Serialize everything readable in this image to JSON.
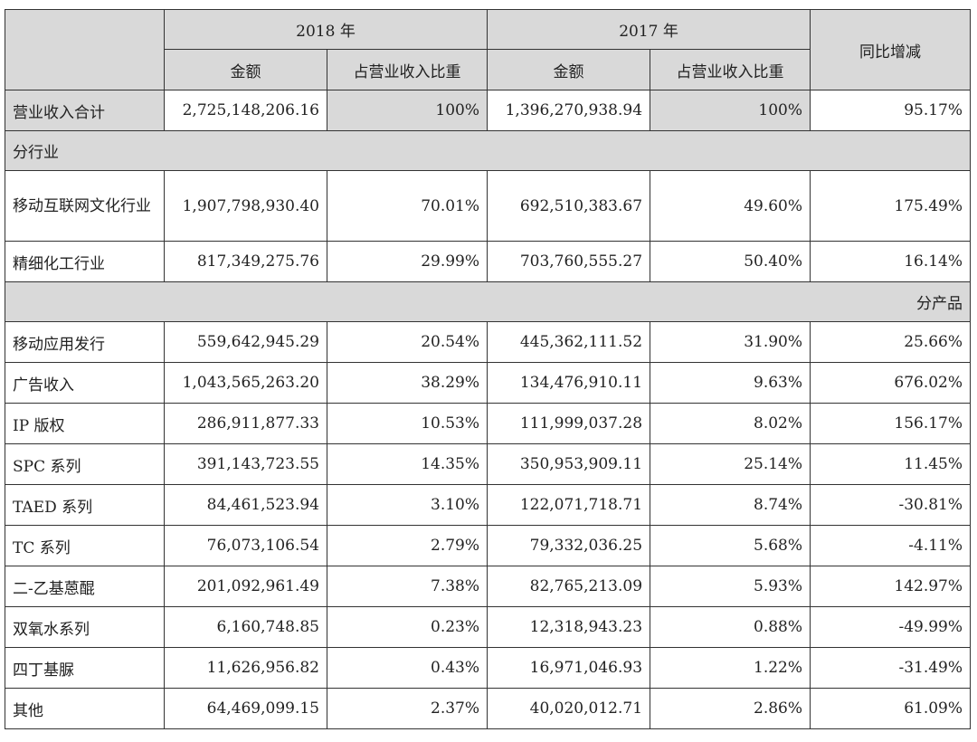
{
  "header": {
    "year1": "2018 年",
    "year2": "2017 年",
    "amount": "金额",
    "share": "占营业收入比重",
    "yoy": "同比增减"
  },
  "total": {
    "label": "营业收入合计",
    "amount2018": "2,725,148,206.16",
    "share2018": "100%",
    "amount2017": "1,396,270,938.94",
    "share2017": "100%",
    "yoy": "95.17%"
  },
  "sections": {
    "by_industry": "分行业",
    "by_product": "分产品"
  },
  "industry_rows": [
    {
      "label": "移动互联网文化行业",
      "amount2018": "1,907,798,930.40",
      "share2018": "70.01%",
      "amount2017": "692,510,383.67",
      "share2017": "49.60%",
      "yoy": "175.49%"
    },
    {
      "label": "精细化工行业",
      "amount2018": "817,349,275.76",
      "share2018": "29.99%",
      "amount2017": "703,760,555.27",
      "share2017": "50.40%",
      "yoy": "16.14%"
    }
  ],
  "product_rows": [
    {
      "label": "移动应用发行",
      "amount2018": "559,642,945.29",
      "share2018": "20.54%",
      "amount2017": "445,362,111.52",
      "share2017": "31.90%",
      "yoy": "25.66%"
    },
    {
      "label": "广告收入",
      "amount2018": "1,043,565,263.20",
      "share2018": "38.29%",
      "amount2017": "134,476,910.11",
      "share2017": "9.63%",
      "yoy": "676.02%"
    },
    {
      "label": "IP 版权",
      "amount2018": "286,911,877.33",
      "share2018": "10.53%",
      "amount2017": "111,999,037.28",
      "share2017": "8.02%",
      "yoy": "156.17%"
    },
    {
      "label": "SPC 系列",
      "amount2018": "391,143,723.55",
      "share2018": "14.35%",
      "amount2017": "350,953,909.11",
      "share2017": "25.14%",
      "yoy": "11.45%"
    },
    {
      "label": "TAED 系列",
      "amount2018": "84,461,523.94",
      "share2018": "3.10%",
      "amount2017": "122,071,718.71",
      "share2017": "8.74%",
      "yoy": "-30.81%"
    },
    {
      "label": "TC 系列",
      "amount2018": "76,073,106.54",
      "share2018": "2.79%",
      "amount2017": "79,332,036.25",
      "share2017": "5.68%",
      "yoy": "-4.11%"
    },
    {
      "label": "二-乙基蒽醌",
      "amount2018": "201,092,961.49",
      "share2018": "7.38%",
      "amount2017": "82,765,213.09",
      "share2017": "5.93%",
      "yoy": "142.97%"
    },
    {
      "label": "双氧水系列",
      "amount2018": "6,160,748.85",
      "share2018": "0.23%",
      "amount2017": "12,318,943.23",
      "share2017": "0.88%",
      "yoy": "-49.99%"
    },
    {
      "label": "四丁基脲",
      "amount2018": "11,626,956.82",
      "share2018": "0.43%",
      "amount2017": "16,971,046.93",
      "share2017": "1.22%",
      "yoy": "-31.49%"
    },
    {
      "label": "其他",
      "amount2018": "64,469,099.15",
      "share2018": "2.37%",
      "amount2017": "40,020,012.71",
      "share2017": "2.86%",
      "yoy": "61.09%"
    }
  ]
}
